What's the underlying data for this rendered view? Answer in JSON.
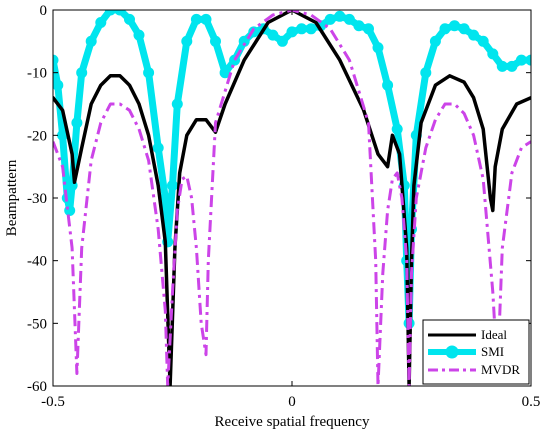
{
  "chart_data": {
    "type": "line",
    "title": "",
    "xlabel": "Receive spatial frequency",
    "ylabel": "Beampattern",
    "xlim": [
      -0.5,
      0.5
    ],
    "ylim": [
      -60,
      0
    ],
    "xticks": [
      -0.5,
      0,
      0.5
    ],
    "xtick_labels": [
      "-0.5",
      "0",
      "0.5"
    ],
    "yticks": [
      0,
      -10,
      -20,
      -30,
      -40,
      -50,
      -60
    ],
    "ytick_labels": [
      "0",
      "-10",
      "-20",
      "-30",
      "-40",
      "-50",
      "-60"
    ],
    "grid": false,
    "legend_position": "bottom-right",
    "series": [
      {
        "name": "Ideal",
        "color": "#000000",
        "style": "solid",
        "x": [
          -0.5,
          -0.48,
          -0.46,
          -0.455,
          -0.44,
          -0.42,
          -0.4,
          -0.38,
          -0.36,
          -0.34,
          -0.32,
          -0.3,
          -0.28,
          -0.265,
          -0.255,
          -0.245,
          -0.235,
          -0.22,
          -0.2,
          -0.18,
          -0.16,
          -0.14,
          -0.1,
          -0.05,
          0,
          0.05,
          0.1,
          0.15,
          0.18,
          0.2,
          0.21,
          0.225,
          0.24,
          0.245,
          0.25,
          0.255,
          0.27,
          0.3,
          0.33,
          0.36,
          0.38,
          0.4,
          0.415,
          0.42,
          0.425,
          0.44,
          0.47,
          0.5
        ],
        "y": [
          -14,
          -16,
          -23,
          -27.5,
          -22,
          -15,
          -12,
          -10.5,
          -10.5,
          -12,
          -15,
          -20,
          -28,
          -37,
          -60,
          -38,
          -26,
          -20,
          -17.5,
          -17.5,
          -19.5,
          -15,
          -8,
          -2,
          0,
          -2,
          -8,
          -16,
          -23,
          -25,
          -20,
          -23,
          -38,
          -60,
          -40,
          -28,
          -18,
          -12,
          -10.5,
          -11.5,
          -14,
          -19,
          -30,
          -32,
          -25,
          -19,
          -15,
          -14
        ]
      },
      {
        "name": "SMI",
        "color": "#00e5ee",
        "style": "solid-thick-markers",
        "x": [
          -0.5,
          -0.49,
          -0.48,
          -0.47,
          -0.465,
          -0.46,
          -0.45,
          -0.44,
          -0.42,
          -0.4,
          -0.38,
          -0.36,
          -0.34,
          -0.32,
          -0.3,
          -0.28,
          -0.265,
          -0.26,
          -0.25,
          -0.24,
          -0.22,
          -0.2,
          -0.18,
          -0.16,
          -0.14,
          -0.12,
          -0.1,
          -0.08,
          -0.06,
          -0.04,
          -0.02,
          0,
          0.02,
          0.04,
          0.06,
          0.08,
          0.1,
          0.12,
          0.14,
          0.16,
          0.18,
          0.2,
          0.22,
          0.235,
          0.24,
          0.245,
          0.25,
          0.26,
          0.28,
          0.3,
          0.32,
          0.34,
          0.36,
          0.38,
          0.4,
          0.42,
          0.44,
          0.46,
          0.48,
          0.5
        ],
        "y": [
          -8,
          -12,
          -20,
          -30,
          -32,
          -28,
          -18,
          -10,
          -5,
          -2,
          0,
          0,
          -1.5,
          -4,
          -10,
          -22,
          -30,
          -37,
          -28,
          -15,
          -5,
          -1.5,
          -1.5,
          -5,
          -10,
          -8,
          -5,
          -3.5,
          -3,
          -4,
          -5,
          -3.5,
          -3,
          -3,
          -2.5,
          -1.5,
          -1,
          -1.5,
          -2.5,
          -3,
          -6,
          -12,
          -19,
          -28,
          -40,
          -50,
          -35,
          -20,
          -10,
          -5,
          -3,
          -2.5,
          -3,
          -4,
          -5,
          -7,
          -9,
          -9,
          -8,
          -8
        ]
      },
      {
        "name": "MVDR",
        "color": "#cc44e8",
        "style": "dashdot",
        "x": [
          -0.5,
          -0.48,
          -0.46,
          -0.45,
          -0.44,
          -0.42,
          -0.4,
          -0.38,
          -0.36,
          -0.34,
          -0.32,
          -0.3,
          -0.28,
          -0.265,
          -0.26,
          -0.25,
          -0.24,
          -0.23,
          -0.22,
          -0.21,
          -0.2,
          -0.19,
          -0.18,
          -0.175,
          -0.16,
          -0.12,
          -0.08,
          -0.04,
          0,
          0.04,
          0.08,
          0.12,
          0.16,
          0.175,
          0.18,
          0.19,
          0.2,
          0.21,
          0.22,
          0.23,
          0.24,
          0.245,
          0.25,
          0.26,
          0.28,
          0.3,
          0.32,
          0.34,
          0.36,
          0.38,
          0.4,
          0.42,
          0.43,
          0.44,
          0.46,
          0.48,
          0.5
        ],
        "y": [
          -21,
          -25,
          -38,
          -58,
          -38,
          -24,
          -18,
          -15,
          -15,
          -16,
          -19,
          -24,
          -35,
          -48,
          -60,
          -45,
          -32,
          -27,
          -26.5,
          -30,
          -38,
          -50,
          -55,
          -40,
          -18,
          -8,
          -3,
          -0.8,
          0,
          -0.8,
          -3,
          -8,
          -18,
          -40,
          -60,
          -42,
          -32,
          -27,
          -26,
          -30,
          -40,
          -60,
          -42,
          -30,
          -22,
          -17.5,
          -15,
          -15,
          -16.5,
          -20,
          -27,
          -45,
          -58,
          -38,
          -26,
          -22,
          -21
        ]
      }
    ]
  }
}
